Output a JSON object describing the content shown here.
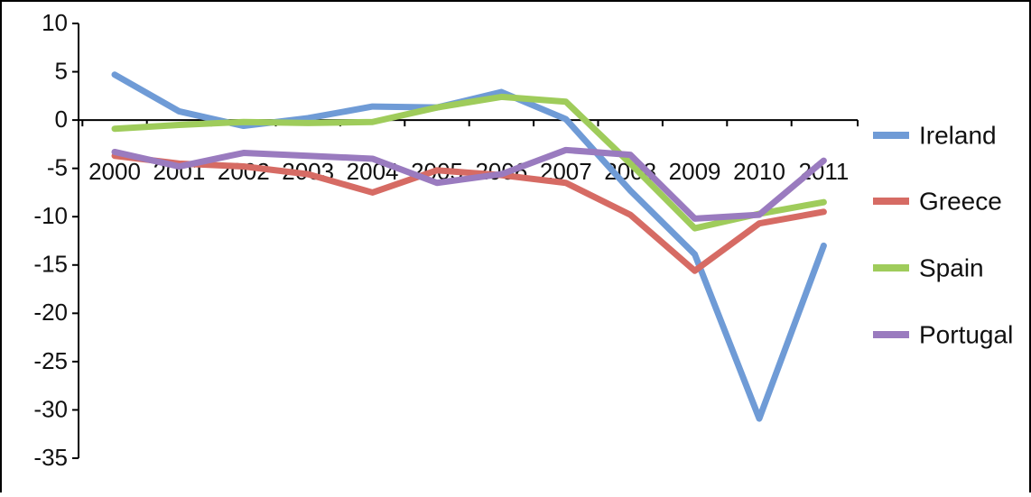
{
  "chart_data": {
    "type": "line",
    "title": "",
    "xlabel": "",
    "ylabel": "",
    "categories": [
      "2000",
      "2001",
      "2002",
      "2003",
      "2004",
      "2005",
      "2006",
      "2007",
      "2008",
      "2009",
      "2010",
      "2011"
    ],
    "y_ticks": [
      "10",
      "5",
      "0",
      "-5",
      "-10",
      "-15",
      "-20",
      "-25",
      "-30",
      "-35"
    ],
    "ylim": [
      -35,
      10
    ],
    "grid": false,
    "legend_position": "right",
    "series": [
      {
        "name": "Ireland",
        "color": "#6f9bd6",
        "values": [
          4.7,
          0.9,
          -0.6,
          0.2,
          1.4,
          1.3,
          2.9,
          0.1,
          -7.3,
          -13.9,
          -30.9,
          -13.0
        ]
      },
      {
        "name": "Greece",
        "color": "#d66b64",
        "values": [
          -3.7,
          -4.5,
          -4.8,
          -5.6,
          -7.5,
          -5.2,
          -5.7,
          -6.5,
          -9.8,
          -15.6,
          -10.7,
          -9.5
        ]
      },
      {
        "name": "Spain",
        "color": "#9fcc5b",
        "values": [
          -0.9,
          -0.5,
          -0.2,
          -0.3,
          -0.2,
          1.3,
          2.4,
          1.9,
          -4.5,
          -11.2,
          -9.7,
          -8.5
        ]
      },
      {
        "name": "Portugal",
        "color": "#9a7bbf",
        "values": [
          -3.3,
          -4.8,
          -3.4,
          -3.7,
          -4.0,
          -6.5,
          -5.6,
          -3.1,
          -3.6,
          -10.2,
          -9.8,
          -4.2
        ]
      }
    ]
  }
}
